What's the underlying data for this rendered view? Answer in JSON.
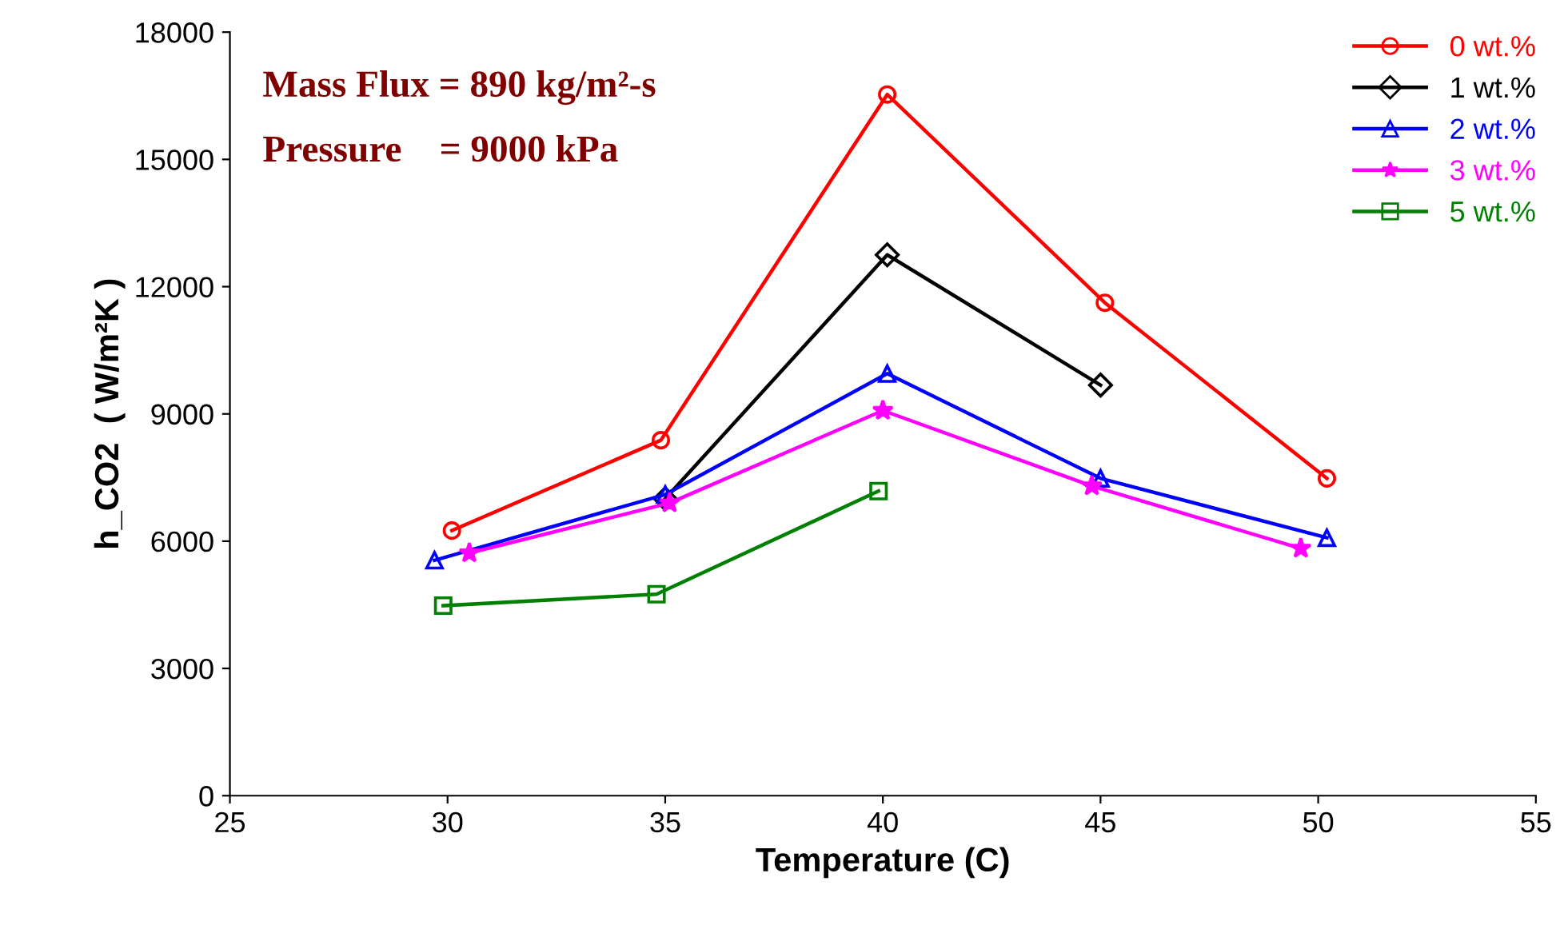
{
  "chart_data": {
    "type": "line",
    "xlabel": "Temperature (C)",
    "ylabel": "h_CO2  ( W/m²K )",
    "xlim": [
      25,
      55
    ],
    "xticks": [
      25,
      30,
      35,
      40,
      45,
      50,
      55
    ],
    "ylim": [
      0,
      18000
    ],
    "yticks": [
      0,
      3000,
      6000,
      9000,
      12000,
      15000,
      18000
    ],
    "grid": false,
    "legend": "top right",
    "line_style": "solid",
    "annotations": [
      "Mass Flux = 890 kg/m²-s",
      "Pressure    = 9000 kPa"
    ],
    "series": [
      {
        "name": "0 wt.%",
        "color": "#ff0000",
        "marker": "circle",
        "x": [
          30.1,
          34.9,
          40.1,
          45.1,
          50.2
        ],
        "values": [
          6250,
          8380,
          16530,
          11620,
          7480
        ]
      },
      {
        "name": "1 wt.%",
        "color": "#000000",
        "marker": "diamond",
        "x": [
          35.0,
          40.1,
          45.0
        ],
        "values": [
          7000,
          12750,
          9680
        ]
      },
      {
        "name": "2 wt.%",
        "color": "#0000ff",
        "marker": "triangle",
        "x": [
          29.7,
          35.0,
          40.1,
          45.0,
          50.2
        ],
        "values": [
          5550,
          7100,
          9950,
          7480,
          6080
        ]
      },
      {
        "name": "3 wt.%",
        "color": "#ff00ff",
        "marker": "star",
        "x": [
          30.5,
          35.1,
          40.0,
          44.8,
          49.6
        ],
        "values": [
          5720,
          6900,
          9080,
          7300,
          5830
        ]
      },
      {
        "name": "5 wt.%",
        "color": "#008000",
        "marker": "square",
        "x": [
          29.9,
          34.8,
          39.9
        ],
        "values": [
          4480,
          4750,
          7180
        ]
      }
    ]
  }
}
